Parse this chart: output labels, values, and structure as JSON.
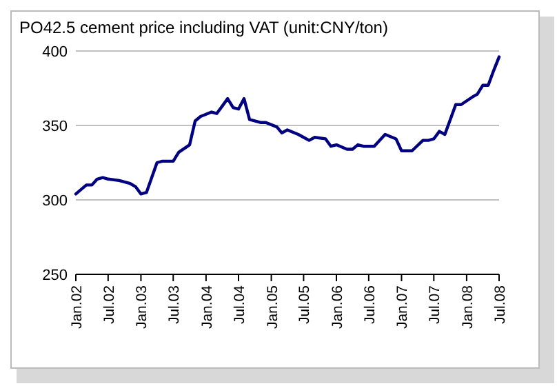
{
  "chart_data": {
    "type": "line",
    "title": "PO42.5 cement price  including VAT (unit:CNY/ton)",
    "x": [
      "2002-01",
      "2002-03",
      "2002-04",
      "2002-05",
      "2002-06",
      "2002-07",
      "2002-09",
      "2002-11",
      "2002-12",
      "2003-01",
      "2003-02",
      "2003-04",
      "2003-05",
      "2003-07",
      "2003-08",
      "2003-10",
      "2003-11",
      "2003-12",
      "2004-02",
      "2004-03",
      "2004-04",
      "2004-05",
      "2004-06",
      "2004-07",
      "2004-08",
      "2004-09",
      "2004-11",
      "2004-12",
      "2005-02",
      "2005-03",
      "2005-04",
      "2005-06",
      "2005-07",
      "2005-08",
      "2005-09",
      "2005-11",
      "2005-12",
      "2006-01",
      "2006-03",
      "2006-04",
      "2006-05",
      "2006-06",
      "2006-08",
      "2006-10",
      "2006-12",
      "2007-01",
      "2007-03",
      "2007-05",
      "2007-06",
      "2007-07",
      "2007-08",
      "2007-09",
      "2007-11",
      "2007-12",
      "2008-02",
      "2008-03",
      "2008-04",
      "2008-05",
      "2008-06",
      "2008-07"
    ],
    "series": [
      {
        "color": "#000080",
        "values": [
          304,
          310,
          310,
          314,
          315,
          314,
          313,
          311,
          309,
          304,
          305,
          325,
          326,
          326,
          332,
          337,
          353,
          356,
          359,
          358,
          363,
          368,
          362,
          361,
          368,
          354,
          352,
          352,
          349,
          345,
          347,
          344,
          342,
          340,
          342,
          341,
          336,
          337,
          334,
          334,
          337,
          336,
          336,
          344,
          341,
          333,
          333,
          340,
          340,
          341,
          346,
          344,
          364,
          364,
          369,
          371,
          377,
          377,
          387,
          396
        ]
      }
    ],
    "xlim": [
      "2002-01",
      "2008-07"
    ],
    "xticks": [
      {
        "value": "2002-01",
        "label": "Jan.02"
      },
      {
        "value": "2002-07",
        "label": "Jul.02"
      },
      {
        "value": "2003-01",
        "label": "Jan.03"
      },
      {
        "value": "2003-07",
        "label": "Jul.03"
      },
      {
        "value": "2004-01",
        "label": "Jan.04"
      },
      {
        "value": "2004-07",
        "label": "Jul.04"
      },
      {
        "value": "2005-01",
        "label": "Jan.05"
      },
      {
        "value": "2005-07",
        "label": "Jul.05"
      },
      {
        "value": "2006-01",
        "label": "Jan.06"
      },
      {
        "value": "2006-07",
        "label": "Jul.06"
      },
      {
        "value": "2007-01",
        "label": "Jan.07"
      },
      {
        "value": "2007-07",
        "label": "Jul.07"
      },
      {
        "value": "2008-01",
        "label": "Jan.08"
      },
      {
        "value": "2008-07",
        "label": "Jul.08"
      }
    ],
    "ylim": [
      250,
      400
    ],
    "yticks": [
      250,
      300,
      350,
      400
    ],
    "grid": "y",
    "marker": "none",
    "line_style": "solid"
  }
}
